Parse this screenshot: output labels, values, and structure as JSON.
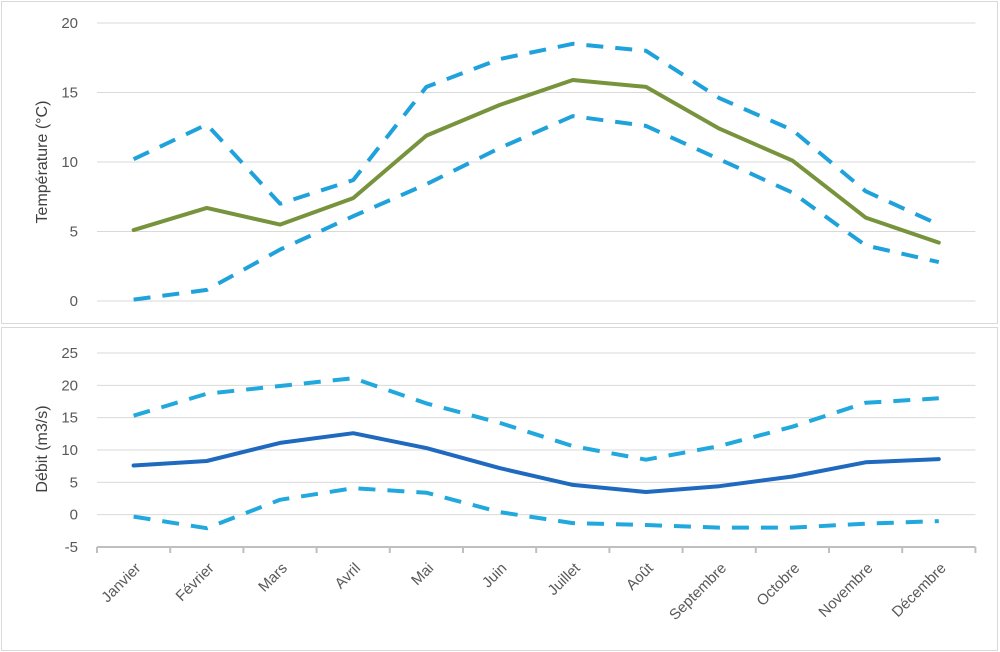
{
  "chart_data": [
    {
      "type": "line",
      "title": "",
      "xlabel": "",
      "ylabel": "Température (°C)",
      "ylim": [
        0,
        20
      ],
      "yticks": [
        0,
        5,
        10,
        15,
        20
      ],
      "grid": true,
      "legend": "none",
      "categories": [
        "Janvier",
        "Février",
        "Mars",
        "Avril",
        "Mai",
        "Juin",
        "Juillet",
        "Août",
        "Septembre",
        "Octobre",
        "Novembre",
        "Décembre"
      ],
      "series": [
        {
          "style": "dashed",
          "color": "#1fa2dc",
          "values": [
            10.2,
            12.7,
            7.0,
            8.7,
            15.4,
            17.4,
            18.5,
            18.0,
            14.6,
            12.3,
            7.9,
            5.5
          ]
        },
        {
          "style": "solid",
          "color": "#77933c",
          "values": [
            5.1,
            6.7,
            5.5,
            7.4,
            11.9,
            14.1,
            15.9,
            15.4,
            12.4,
            10.1,
            6.0,
            4.2
          ]
        },
        {
          "style": "dashed",
          "color": "#1fa2dc",
          "values": [
            0.1,
            0.8,
            3.7,
            6.1,
            8.4,
            11.0,
            13.3,
            12.6,
            10.2,
            7.8,
            4.0,
            2.8
          ]
        }
      ]
    },
    {
      "type": "line",
      "title": "",
      "xlabel": "",
      "ylabel": "Débit (m3/s)",
      "ylim": [
        -5,
        25
      ],
      "yticks": [
        -5,
        0,
        5,
        10,
        15,
        20,
        25
      ],
      "grid": true,
      "legend": "none",
      "categories": [
        "Janvier",
        "Février",
        "Mars",
        "Avril",
        "Mai",
        "Juin",
        "Juillet",
        "Août",
        "Septembre",
        "Octobre",
        "Novembre",
        "Décembre"
      ],
      "series": [
        {
          "style": "dashed",
          "color": "#21a8dd",
          "values": [
            15.3,
            18.7,
            19.9,
            21.1,
            17.2,
            14.2,
            10.6,
            8.5,
            10.6,
            13.6,
            17.3,
            18.0
          ]
        },
        {
          "style": "solid",
          "color": "#1f69be",
          "values": [
            7.6,
            8.3,
            11.1,
            12.6,
            10.3,
            7.2,
            4.6,
            3.5,
            4.4,
            5.9,
            8.1,
            8.6
          ]
        },
        {
          "style": "dashed",
          "color": "#21a8dd",
          "values": [
            -0.3,
            -2.1,
            2.3,
            4.1,
            3.4,
            0.4,
            -1.3,
            -1.6,
            -2.0,
            -2.0,
            -1.4,
            -1.0
          ]
        }
      ]
    }
  ]
}
